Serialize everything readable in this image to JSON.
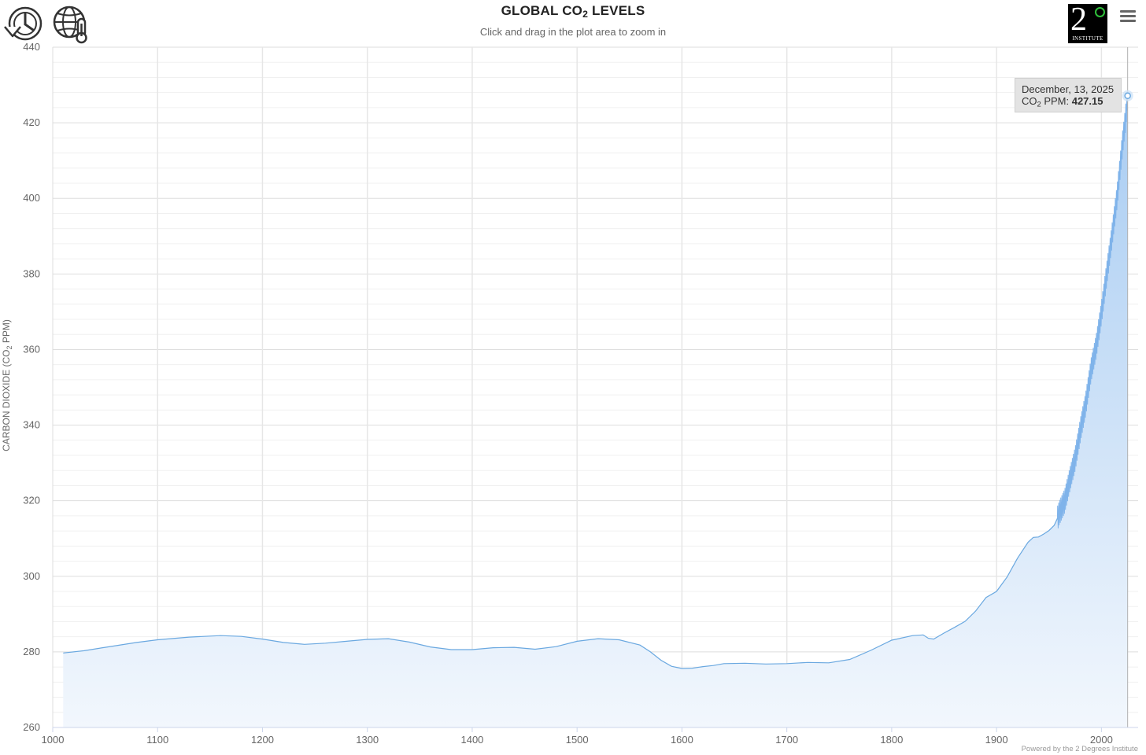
{
  "header": {
    "title_prefix": "GLOBAL CO",
    "title_sub": "2",
    "title_suffix": " LEVELS",
    "subtitle": "Click and drag in the plot area to zoom in",
    "left_icons": [
      "history-clock-icon",
      "globe-thermometer-icon"
    ],
    "logo": {
      "big_text": "2",
      "small_text": "INSTITUTE",
      "accent_color": "#2fbf3a"
    },
    "menu_icon": "hamburger-menu-icon"
  },
  "tooltip": {
    "date": "December, 13, 2025",
    "label_prefix": "CO",
    "label_sub": "2",
    "label_suffix": " PPM: ",
    "value": "427.15"
  },
  "credits": "Powered by the 2 Degrees Institute",
  "chart_data": {
    "type": "area",
    "title": "GLOBAL CO2 LEVELS",
    "subtitle": "Click and drag in the plot area to zoom in",
    "ylabel": {
      "prefix": "CARBON DIOXIDE (CO",
      "sub": "2",
      "suffix": " PPM)"
    },
    "xlabel": "",
    "xlim": [
      1000,
      2035
    ],
    "ylim": [
      260,
      440
    ],
    "x_ticks": [
      "1000",
      "1100",
      "1200",
      "1300",
      "1400",
      "1500",
      "1600",
      "1700",
      "1800",
      "1900",
      "2000"
    ],
    "y_ticks": [
      "260",
      "280",
      "300",
      "320",
      "340",
      "360",
      "380",
      "400",
      "420",
      "440"
    ],
    "grid": true,
    "line_color": "#6aa8e0",
    "fill_color_top": "#a8ccf2",
    "fill_color_bottom": "#f2f7fd",
    "series": [
      {
        "x": [
          1010,
          1030,
          1050,
          1080,
          1100,
          1130,
          1160,
          1180,
          1200,
          1220,
          1240,
          1260,
          1280,
          1300,
          1320,
          1340,
          1360,
          1380,
          1400,
          1420,
          1440,
          1460,
          1480,
          1500,
          1520,
          1540,
          1560,
          1570,
          1580,
          1590,
          1600,
          1610,
          1620,
          1630,
          1640,
          1660,
          1680,
          1700,
          1720,
          1740,
          1760,
          1780,
          1800,
          1820,
          1830,
          1835,
          1840,
          1850,
          1860,
          1870,
          1880,
          1890,
          1900,
          1910,
          1920,
          1930,
          1935,
          1940,
          1945,
          1950,
          1955,
          1958,
          1960,
          1965,
          1970,
          1975,
          1980,
          1985,
          1990,
          1995,
          2000,
          2005,
          2010,
          2015,
          2020,
          2023,
          2025
        ],
        "y": [
          279.7,
          280.3,
          281.2,
          282.5,
          283.2,
          283.9,
          284.3,
          284.1,
          283.4,
          282.5,
          282.0,
          282.3,
          282.8,
          283.3,
          283.5,
          282.6,
          281.3,
          280.6,
          280.6,
          281.1,
          281.2,
          280.7,
          281.4,
          282.8,
          283.5,
          283.2,
          281.8,
          280.0,
          277.8,
          276.2,
          275.6,
          275.7,
          276.1,
          276.4,
          276.9,
          277.0,
          276.8,
          276.9,
          277.2,
          277.1,
          278.0,
          280.4,
          283.1,
          284.3,
          284.5,
          283.6,
          283.4,
          285.0,
          286.5,
          288.1,
          290.8,
          294.4,
          296.0,
          299.8,
          304.8,
          309.0,
          310.3,
          310.4,
          311.2,
          312.1,
          313.5,
          315.3,
          316.9,
          319.9,
          325.7,
          331.1,
          338.8,
          345.5,
          354.4,
          360.8,
          369.7,
          379.8,
          389.9,
          400.6,
          414.2,
          421.1,
          427.2
        ]
      }
    ],
    "last_point": {
      "x": "December, 13, 2025",
      "y": 427.15
    }
  }
}
